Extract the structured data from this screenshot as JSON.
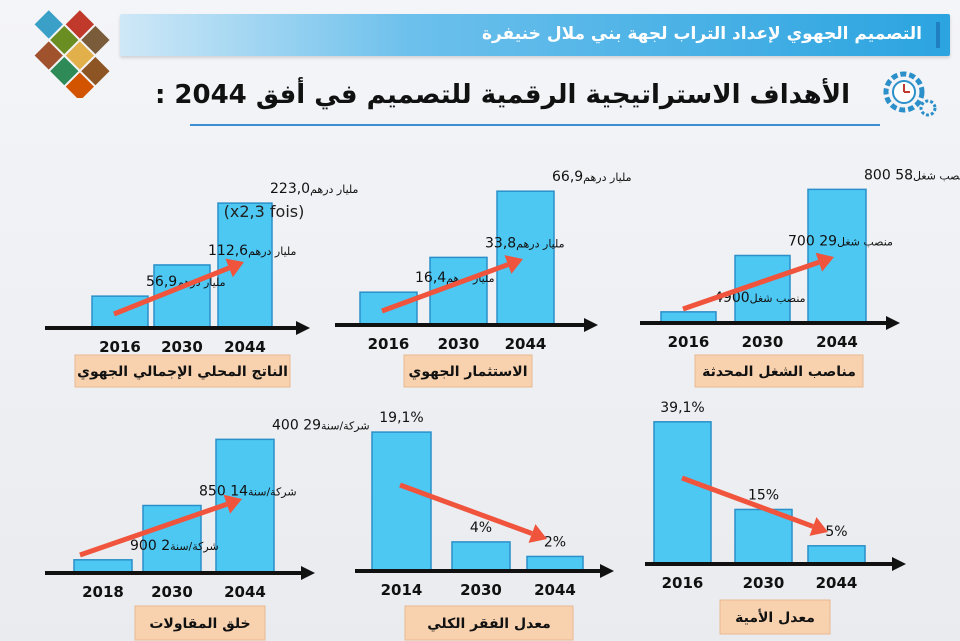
{
  "banner": {
    "title": "التصميم الجهوي لإعداد التراب لجهة بني ملال خنيفرة"
  },
  "heading": {
    "title": "الأهداف الاستراتيجية الرقمية للتصميم في أفق 2044 :"
  },
  "colors": {
    "bar": "#4dc8f3",
    "bar_stroke": "#2b8fc9",
    "trend": "#f0543c",
    "axis": "#111111",
    "caption_bg": "#f8d2ae",
    "banner": "#2ba4e0"
  },
  "chart_data": [
    {
      "type": "bar",
      "title": "الناتج المحلي الإجمالي الجهوي",
      "categories": [
        "2016",
        "2030",
        "2044"
      ],
      "values": [
        56.9,
        112.6,
        223.0
      ],
      "labels": [
        "56,9",
        "112,6",
        "223,0"
      ],
      "unit": "مليار درهم",
      "note": "(x2,3 fois)",
      "trend": "up",
      "ylim": [
        0,
        250
      ]
    },
    {
      "type": "bar",
      "title": "الاستثمار الجهوي",
      "categories": [
        "2016",
        "2030",
        "2044"
      ],
      "values": [
        16.4,
        33.8,
        66.9
      ],
      "labels": [
        "16,4",
        "33,8",
        "66,9"
      ],
      "unit": "مليار درهم",
      "trend": "up",
      "ylim": [
        0,
        75
      ]
    },
    {
      "type": "bar",
      "title": "مناصب الشغل المحدثة",
      "categories": [
        "2016",
        "2030",
        "2044"
      ],
      "values": [
        4900,
        29700,
        58800
      ],
      "labels": [
        "4900",
        "29 700",
        "58 800"
      ],
      "unit": "منصب شغل",
      "trend": "up",
      "ylim": [
        0,
        66000
      ]
    },
    {
      "type": "bar",
      "title": "خلق المقاولات",
      "categories": [
        "2018",
        "2030",
        "2044"
      ],
      "values": [
        2900,
        14850,
        29400
      ],
      "labels": [
        "2 900",
        "14 850",
        "29 400"
      ],
      "unit": "شركة/سنة",
      "trend": "up",
      "ylim": [
        0,
        33000
      ]
    },
    {
      "type": "bar",
      "title": "معدل الفقر الكلي",
      "categories": [
        "2014",
        "2030",
        "2044"
      ],
      "values": [
        19.1,
        4,
        2
      ],
      "labels": [
        "19,1%",
        "4%",
        "2%"
      ],
      "unit": "",
      "trend": "down",
      "ylim": [
        0,
        22
      ]
    },
    {
      "type": "bar",
      "title": "معدل الأمية",
      "categories": [
        "2016",
        "2030",
        "2044"
      ],
      "values": [
        39.1,
        15,
        5
      ],
      "labels": [
        "39,1%",
        "15%",
        "5%"
      ],
      "unit": "",
      "trend": "down",
      "ylim": [
        0,
        44
      ]
    }
  ]
}
